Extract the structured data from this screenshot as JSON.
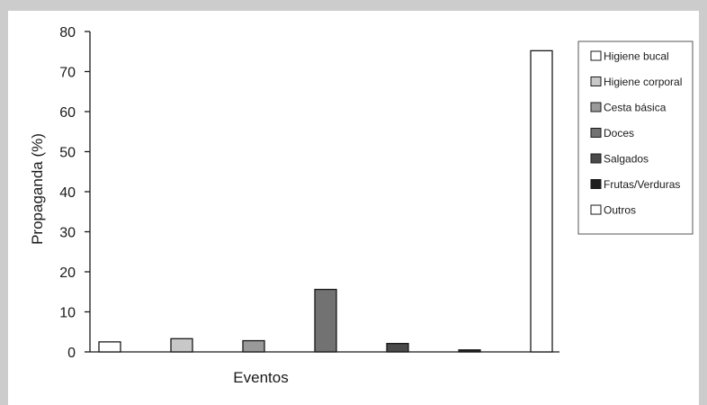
{
  "chart_data": {
    "type": "bar",
    "xlabel": "Eventos",
    "ylabel": "Propaganda (%)",
    "ylim": [
      0,
      80
    ],
    "yticks": [
      0,
      10,
      20,
      30,
      40,
      50,
      60,
      70,
      80
    ],
    "grid": false,
    "legend_position": "right",
    "series": [
      {
        "name": "Higiene bucal",
        "value": 2.5,
        "color": "#ffffff"
      },
      {
        "name": "Higiene corporal",
        "value": 3.3,
        "color": "#c8c8c8"
      },
      {
        "name": "Cesta básica",
        "value": 2.8,
        "color": "#9a9a9a"
      },
      {
        "name": "Doces",
        "value": 15.6,
        "color": "#727272"
      },
      {
        "name": "Salgados",
        "value": 2.1,
        "color": "#4a4a4a"
      },
      {
        "name": "Frutas/Verduras",
        "value": 0.5,
        "color": "#1f1f1f"
      },
      {
        "name": "Outros",
        "value": 75.2,
        "color": "#ffffff"
      }
    ]
  }
}
